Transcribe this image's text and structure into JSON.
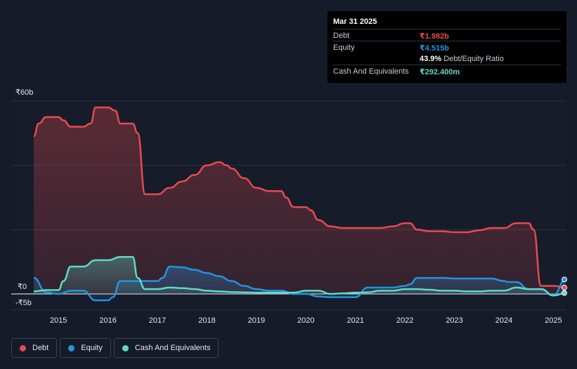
{
  "tooltip": {
    "date": "Mar 31 2025",
    "debt_label": "Debt",
    "debt_value": "₹1.982b",
    "equity_label": "Equity",
    "equity_value": "₹4.515b",
    "ratio_value": "43.9%",
    "ratio_label": "Debt/Equity Ratio",
    "cash_label": "Cash And Equivalents",
    "cash_value": "₹292.400m"
  },
  "legend": [
    {
      "label": "Debt",
      "color": "#e84a4f"
    },
    {
      "label": "Equity",
      "color": "#2394df"
    },
    {
      "label": "Cash And Equivalents",
      "color": "#5ddac6"
    }
  ],
  "chart_data": {
    "type": "area",
    "y_tick_labels": [
      "₹60b",
      "₹0",
      "-₹5b"
    ],
    "x_tick_labels": [
      "2015",
      "2016",
      "2017",
      "2018",
      "2019",
      "2020",
      "2021",
      "2022",
      "2023",
      "2024",
      "2025"
    ],
    "ylim": [
      -5,
      60
    ],
    "xlim": [
      2014.5,
      2025.25
    ],
    "grid": true,
    "legend_position": "bottom-left",
    "series": [
      {
        "name": "Debt",
        "color": "#e84a4f",
        "x": [
          2014.5,
          2014.6,
          2014.75,
          2015.0,
          2015.1,
          2015.25,
          2015.5,
          2015.65,
          2015.75,
          2016.0,
          2016.15,
          2016.25,
          2016.5,
          2016.6,
          2016.75,
          2017.0,
          2017.25,
          2017.5,
          2017.75,
          2018.0,
          2018.25,
          2018.4,
          2018.5,
          2018.75,
          2019.0,
          2019.25,
          2019.5,
          2019.6,
          2019.75,
          2020.0,
          2020.1,
          2020.25,
          2020.5,
          2020.75,
          2021.0,
          2021.5,
          2021.75,
          2022.0,
          2022.1,
          2022.25,
          2022.5,
          2022.75,
          2023.0,
          2023.25,
          2023.5,
          2023.75,
          2024.0,
          2024.25,
          2024.5,
          2024.6,
          2024.75,
          2025.0,
          2025.25
        ],
        "values": [
          49,
          53,
          55,
          55,
          54,
          52,
          52,
          53,
          58,
          58,
          57,
          53,
          53,
          50,
          31,
          31,
          33,
          35,
          37,
          40,
          41,
          40,
          39,
          36,
          33,
          32,
          32,
          30,
          27,
          27,
          26,
          23,
          21,
          20.5,
          20.5,
          20.5,
          21,
          22,
          22,
          20,
          19.5,
          19.5,
          19.2,
          19.2,
          19.8,
          20.5,
          20.5,
          22,
          22,
          20,
          2.5,
          2.5,
          1.98
        ]
      },
      {
        "name": "Equity",
        "color": "#2394df",
        "x": [
          2014.5,
          2014.75,
          2015.0,
          2015.25,
          2015.5,
          2015.75,
          2016.0,
          2016.1,
          2016.25,
          2016.5,
          2016.75,
          2017.0,
          2017.1,
          2017.25,
          2017.5,
          2017.75,
          2018.0,
          2018.25,
          2018.5,
          2018.75,
          2019.0,
          2019.25,
          2019.5,
          2019.75,
          2020.0,
          2020.25,
          2020.5,
          2020.75,
          2021.0,
          2021.25,
          2021.5,
          2021.75,
          2022.0,
          2022.1,
          2022.25,
          2022.5,
          2022.75,
          2023.0,
          2023.25,
          2023.5,
          2023.75,
          2024.0,
          2024.1,
          2024.25,
          2024.5,
          2024.75,
          2025.0,
          2025.25
        ],
        "values": [
          5,
          0.5,
          0,
          1,
          1,
          -2,
          -2,
          -1,
          4,
          4,
          4,
          4,
          5,
          8.5,
          8.3,
          7.5,
          6.5,
          5.5,
          4,
          2.5,
          1.5,
          1,
          1,
          0,
          0,
          -0.8,
          -1,
          -1,
          -1,
          2,
          2,
          2,
          2.5,
          3,
          5,
          5,
          5,
          4.8,
          4.8,
          4.8,
          4.8,
          4,
          3.7,
          3.7,
          1.5,
          1.5,
          -0.3,
          4.5
        ]
      },
      {
        "name": "Cash And Equivalents",
        "color": "#5ddac6",
        "x": [
          2014.5,
          2014.75,
          2015.0,
          2015.1,
          2015.25,
          2015.5,
          2015.75,
          2016.0,
          2016.25,
          2016.5,
          2016.6,
          2016.75,
          2017.0,
          2017.25,
          2017.5,
          2017.75,
          2018.0,
          2018.25,
          2018.5,
          2018.75,
          2019.0,
          2019.25,
          2019.5,
          2019.75,
          2020.0,
          2020.25,
          2020.5,
          2020.75,
          2021.0,
          2021.25,
          2021.5,
          2021.75,
          2022.0,
          2022.25,
          2022.5,
          2022.75,
          2023.0,
          2023.25,
          2023.5,
          2023.75,
          2024.0,
          2024.25,
          2024.5,
          2024.75,
          2025.0,
          2025.25
        ],
        "values": [
          0.8,
          1.2,
          1.2,
          4,
          8.5,
          8.5,
          10.5,
          10.5,
          11.5,
          11.5,
          5,
          1.5,
          1.5,
          2,
          1.8,
          1.5,
          1,
          0.8,
          0.6,
          0.5,
          0.4,
          0.4,
          0.4,
          0.4,
          1,
          1,
          0,
          0.2,
          0.4,
          0.5,
          1,
          1,
          1.5,
          1.5,
          1.3,
          1,
          1,
          0.8,
          0.8,
          1,
          1,
          2,
          1.5,
          1.5,
          -0.5,
          0.29
        ]
      }
    ]
  }
}
